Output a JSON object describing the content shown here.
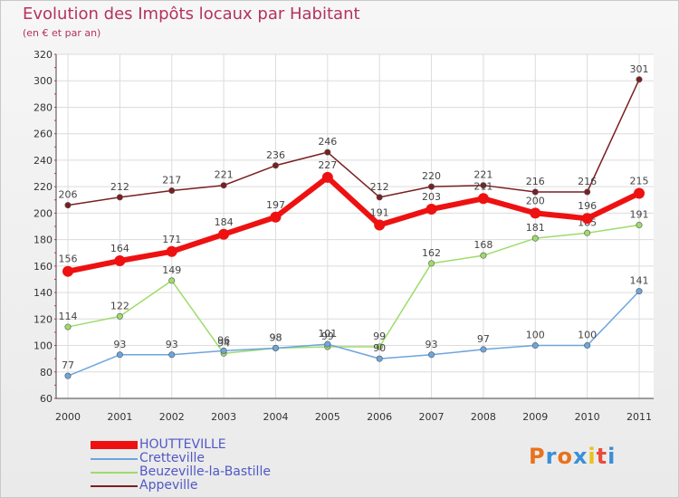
{
  "title": "Evolution des Impôts locaux par Habitant",
  "subtitle": "(en € et par an)",
  "logo": {
    "text": "Proxiti",
    "letters": [
      "P",
      "r",
      "o",
      "x",
      "i",
      "t",
      "i"
    ]
  },
  "chart_data": {
    "type": "line",
    "title": "Evolution des Impôts locaux par Habitant",
    "subtitle": "(en € et par an)",
    "xlabel": "",
    "ylabel": "",
    "ylim": [
      60,
      320
    ],
    "yticks": [
      60,
      80,
      100,
      120,
      140,
      160,
      180,
      200,
      220,
      240,
      260,
      280,
      300,
      320
    ],
    "grid": true,
    "legend_position": "bottom-left",
    "categories": [
      "2000",
      "2001",
      "2002",
      "2003",
      "2004",
      "2005",
      "2006",
      "2007",
      "2008",
      "2009",
      "2010",
      "2011"
    ],
    "series": [
      {
        "name": "Appeville",
        "color": "#7a1f22",
        "values": [
          206,
          212,
          217,
          221,
          236,
          246,
          212,
          220,
          221,
          216,
          216,
          301
        ]
      },
      {
        "name": "Beuzeville-la-Bastille",
        "color": "#9ddc6a",
        "values": [
          114,
          122,
          149,
          94,
          98,
          99,
          99,
          162,
          168,
          181,
          185,
          191
        ]
      },
      {
        "name": "Cretteville",
        "color": "#6ca6dd",
        "values": [
          77,
          93,
          93,
          96,
          98,
          101,
          90,
          93,
          97,
          100,
          100,
          141
        ]
      },
      {
        "name": "HOUTTEVILLE",
        "color": "#ee1111",
        "values": [
          156,
          164,
          171,
          184,
          197,
          227,
          191,
          203,
          211,
          200,
          196,
          215
        ]
      }
    ],
    "legend": [
      {
        "name": "HOUTTEVILLE",
        "color": "#ee1111"
      },
      {
        "name": "Cretteville",
        "color": "#6ca6dd"
      },
      {
        "name": "Beuzeville-la-Bastille",
        "color": "#9ddc6a"
      },
      {
        "name": "Appeville",
        "color": "#7a1f22"
      }
    ]
  }
}
